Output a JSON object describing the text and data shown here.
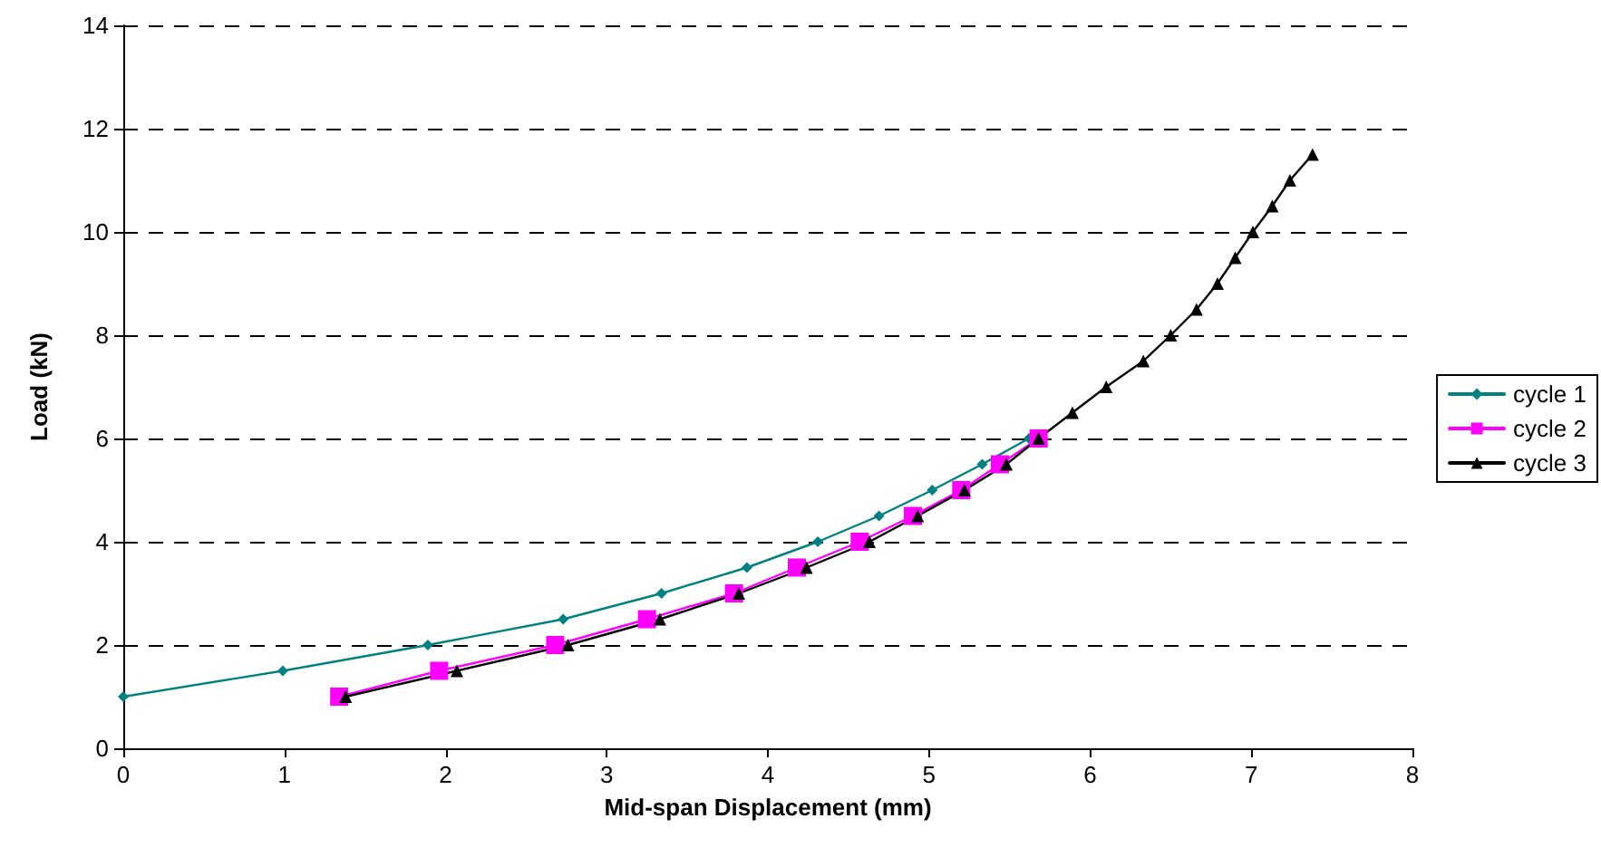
{
  "chart_data": {
    "type": "line",
    "xlabel": "Mid-span Displacement (mm)",
    "ylabel": "Load (kN)",
    "xlim": [
      0,
      8
    ],
    "xticks": [
      0,
      1,
      2,
      3,
      4,
      5,
      6,
      7,
      8
    ],
    "ylim": [
      0,
      14
    ],
    "yticks": [
      0,
      2,
      4,
      6,
      8,
      10,
      12,
      14
    ],
    "grid": "y",
    "legend": "right",
    "line_style": "solid",
    "series": [
      {
        "name": "cycle 1",
        "color": "#008080",
        "marker": "diamond",
        "x": [
          0,
          0.99,
          1.89,
          2.73,
          3.34,
          3.87,
          4.31,
          4.69,
          5.02,
          5.33,
          5.62
        ],
        "values": [
          1,
          1.5,
          2,
          2.5,
          3,
          3.5,
          4,
          4.5,
          5,
          5.5,
          6
        ]
      },
      {
        "name": "cycle 2",
        "color": "#ff00ff",
        "marker": "square",
        "x": [
          1.34,
          1.96,
          2.68,
          3.25,
          3.79,
          4.18,
          4.57,
          4.9,
          5.2,
          5.44,
          5.68
        ],
        "values": [
          1,
          1.5,
          2,
          2.5,
          3,
          3.5,
          4,
          4.5,
          5,
          5.5,
          6
        ]
      },
      {
        "name": "cycle 3",
        "color": "#000000",
        "marker": "triangle",
        "x": [
          1.38,
          2.07,
          2.76,
          3.33,
          3.82,
          4.24,
          4.63,
          4.93,
          5.22,
          5.48,
          5.68,
          5.89,
          6.1,
          6.33,
          6.5,
          6.66,
          6.79,
          6.9,
          7.01,
          7.13,
          7.24,
          7.38
        ],
        "values": [
          1,
          1.5,
          2,
          2.5,
          3,
          3.5,
          4,
          4.5,
          5,
          5.5,
          6,
          6.5,
          7,
          7.5,
          8,
          8.5,
          9,
          9.5,
          10,
          10.5,
          11,
          11.5
        ]
      }
    ]
  }
}
